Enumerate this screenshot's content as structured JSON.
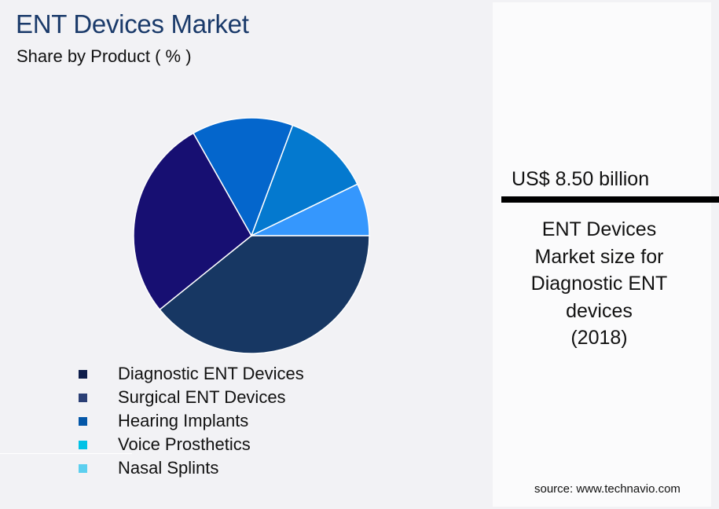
{
  "header": {
    "title": "ENT Devices Market",
    "subtitle": "Share by Product ( % )"
  },
  "legend": [
    {
      "label": "Diagnostic ENT Devices",
      "color": "#0e1d4a"
    },
    {
      "label": "Surgical ENT Devices",
      "color": "#2b3f75"
    },
    {
      "label": "Hearing Implants",
      "color": "#0457a8"
    },
    {
      "label": "Voice Prosthetics",
      "color": "#00c2e6"
    },
    {
      "label": "Nasal Splints",
      "color": "#5ccfef"
    }
  ],
  "panel": {
    "value": "US$ 8.50 billion",
    "description_lines": [
      "ENT Devices",
      "Market size for",
      "Diagnostic ENT",
      "devices",
      "(2018)"
    ]
  },
  "source": "source: www.technavio.com",
  "chart_data": {
    "type": "pie",
    "title": "ENT Devices Market",
    "subtitle": "Share by Product ( % )",
    "categories": [
      "Diagnostic ENT Devices",
      "Surgical ENT Devices",
      "Hearing Implants",
      "Voice Prosthetics",
      "Nasal Splints"
    ],
    "values": [
      39.2,
      27.6,
      13.9,
      12.1,
      7.2
    ],
    "slice_colors": [
      "#173763",
      "#170f72",
      "#0466cc",
      "#0479cf",
      "#3597fd"
    ],
    "start_angle_deg_clockwise_from_east": 0,
    "legend_position": "bottom-left",
    "annotation": "US$ 8.50 billion — ENT Devices Market size for Diagnostic ENT devices (2018)"
  }
}
